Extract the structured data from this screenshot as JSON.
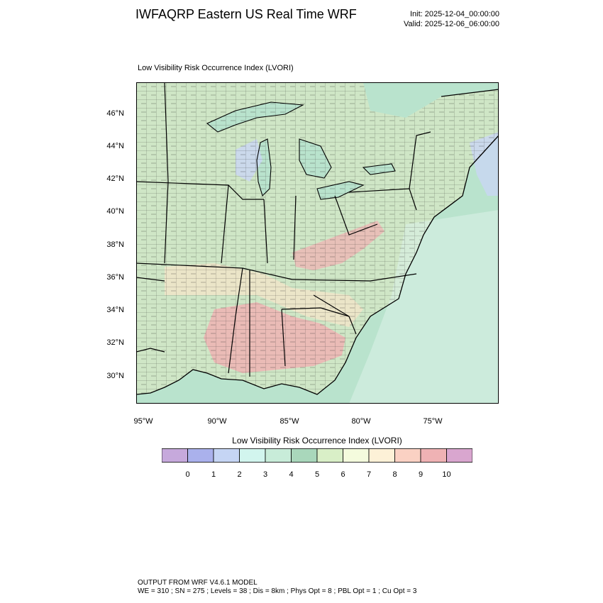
{
  "header": {
    "title": "IWFAQRP Eastern US Real Time WRF",
    "init": "Init: 2025-12-04_00:00:00",
    "valid": "Valid: 2025-12-06_06:00:00"
  },
  "map": {
    "subtitle": "Low Visibility Risk Occurrence Index   (LVORI)",
    "lat_labels": [
      "46°N",
      "44°N",
      "42°N",
      "40°N",
      "38°N",
      "36°N",
      "34°N",
      "32°N",
      "30°N"
    ],
    "lon_labels": [
      "95°W",
      "90°W",
      "85°W",
      "80°W",
      "75°W"
    ],
    "colors": {
      "water": "#b9e3cd",
      "land_base": "#cfe6c6",
      "high_risk": "#efb3b3",
      "med_risk": "#f6e4c9",
      "low_risk": "#d9f0e6",
      "very_low": "#c9d6f4",
      "border": "#000000"
    }
  },
  "colorbar": {
    "title": "Low Visibility Risk Occurrence Index  (LVORI)",
    "colors": [
      "#c6a9dc",
      "#aab1ec",
      "#c5d5f4",
      "#d2f5ee",
      "#c8ecd9",
      "#a9d7bb",
      "#d9efc7",
      "#f4fbdd",
      "#fdf1d7",
      "#fad1c3",
      "#efb2b4",
      "#d9a6cf"
    ],
    "labels": [
      "0",
      "1",
      "2",
      "3",
      "4",
      "5",
      "6",
      "7",
      "8",
      "9",
      "10"
    ]
  },
  "footer": {
    "line1": "OUTPUT FROM WRF V4.6.1 MODEL",
    "line2": "WE = 310 ; SN = 275 ; Levels = 38 ; Dis = 8km ; Phys Opt = 8 ; PBL Opt = 1 ; Cu Opt = 3"
  }
}
